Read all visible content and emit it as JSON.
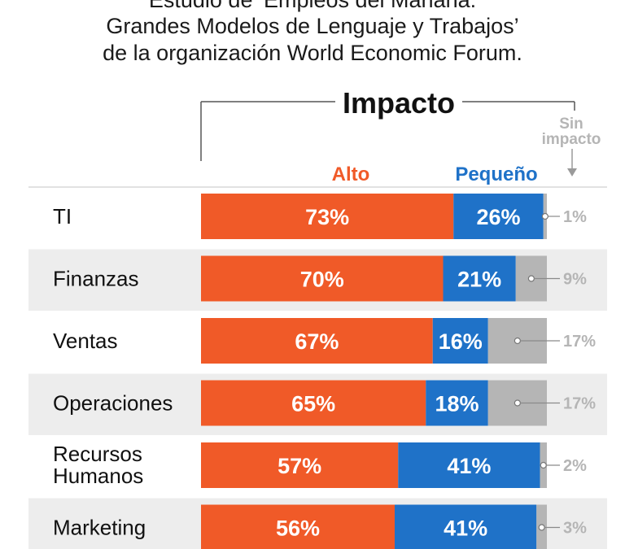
{
  "header": {
    "title_lines": [
      "Estudio de ‘Empleos del Mañana:",
      "Grandes Modelos de Lenguaje y Trabajos’",
      "de la organización World Economic Forum."
    ]
  },
  "colors": {
    "alto": "#f05a28",
    "pequeno": "#1f72c8",
    "sin_impacto": "#b5b5b5",
    "row_band": "#ededed"
  },
  "chart_data": {
    "type": "bar",
    "orientation": "horizontal",
    "stacked": true,
    "group_title": "Impacto",
    "categories": [
      "TI",
      "Finanzas",
      "Ventas",
      "Operaciones",
      "Recursos Humanos",
      "Marketing"
    ],
    "category_lines": [
      [
        "TI"
      ],
      [
        "Finanzas"
      ],
      [
        "Ventas"
      ],
      [
        "Operaciones"
      ],
      [
        "Recursos",
        "Humanos"
      ],
      [
        "Marketing"
      ]
    ],
    "series": [
      {
        "name": "Alto",
        "values": [
          73,
          70,
          67,
          65,
          57,
          56
        ]
      },
      {
        "name": "Pequeño",
        "values": [
          26,
          21,
          16,
          18,
          41,
          41
        ]
      },
      {
        "name": "Sin impacto",
        "name_lines": [
          "Sin",
          "impacto"
        ],
        "values": [
          1,
          9,
          17,
          17,
          2,
          3
        ]
      }
    ],
    "value_suffix": "%",
    "xlim": [
      0,
      100
    ]
  }
}
